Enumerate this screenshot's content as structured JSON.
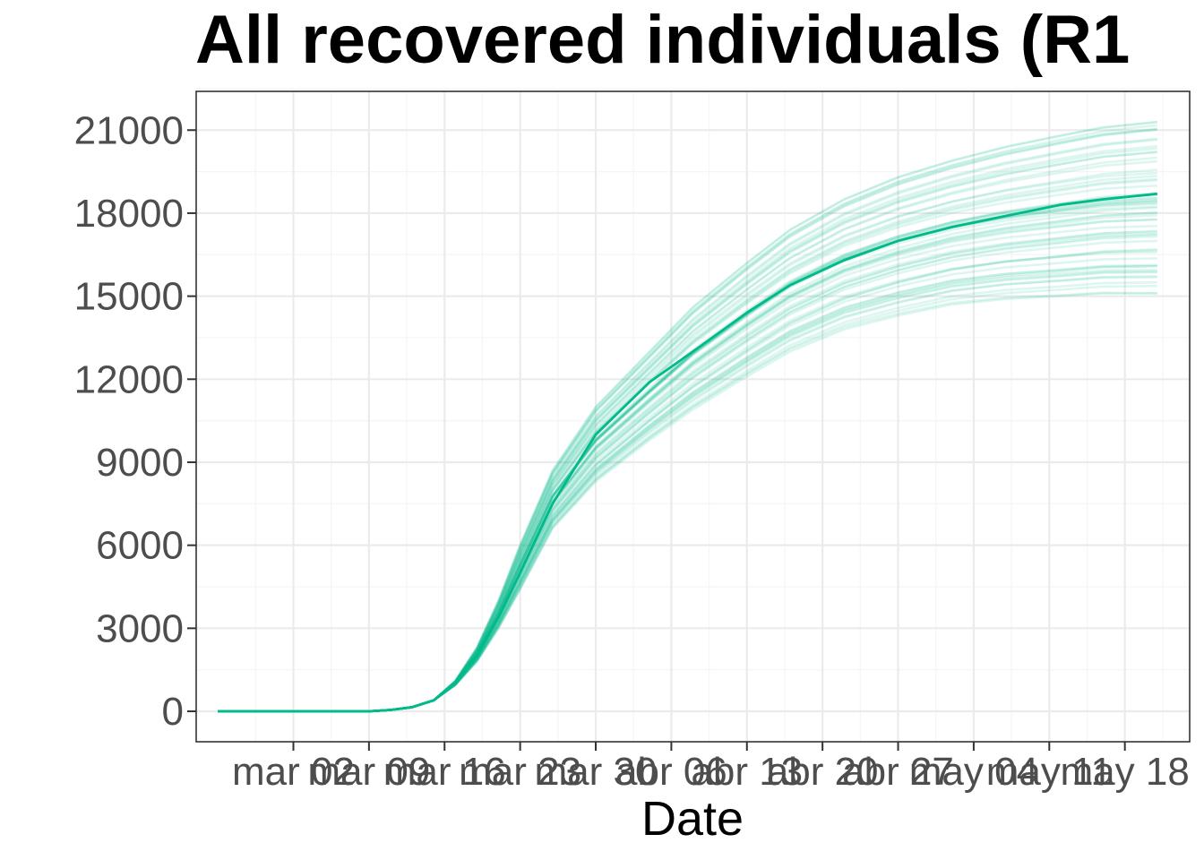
{
  "chart_data": {
    "type": "line",
    "title": "All recovered individuals (R1",
    "xlabel": "Date",
    "ylabel": "",
    "ylim": [
      -1100,
      22400
    ],
    "y_ticks": [
      0,
      3000,
      6000,
      9000,
      12000,
      15000,
      18000,
      21000
    ],
    "y_tick_labels": [
      "0",
      "3000",
      "6000",
      "9000",
      "12000",
      "15000",
      "18000",
      "21000"
    ],
    "x_tick_labels": [
      "mar 02",
      "mar 09",
      "mar 16",
      "mar 23",
      "mar 30",
      "abr 06",
      "abr 13",
      "abr 20",
      "abr 27",
      "may 04",
      "may 11",
      "may 18"
    ],
    "x_tick_dates": [
      "2020-03-02",
      "2020-03-09",
      "2020-03-16",
      "2020-03-23",
      "2020-03-30",
      "2020-04-06",
      "2020-04-13",
      "2020-04-20",
      "2020-04-27",
      "2020-05-04",
      "2020-05-11",
      "2020-05-18"
    ],
    "xlim": [
      "2020-02-22",
      "2020-05-24"
    ],
    "grid": true,
    "legend": "none",
    "colors": {
      "series": "#00BA8A",
      "panel_border": "#333333",
      "grid_major": "#ebebeb",
      "grid_minor": "#f5f5f5",
      "tick_label": "#4d4d4d"
    },
    "series": [
      {
        "role": "median",
        "x": [
          "2020-02-24",
          "2020-03-02",
          "2020-03-09",
          "2020-03-11",
          "2020-03-13",
          "2020-03-15",
          "2020-03-17",
          "2020-03-19",
          "2020-03-21",
          "2020-03-23",
          "2020-03-26",
          "2020-03-30",
          "2020-04-04",
          "2020-04-08",
          "2020-04-13",
          "2020-04-17",
          "2020-04-22",
          "2020-04-27",
          "2020-05-02",
          "2020-05-07",
          "2020-05-12",
          "2020-05-16",
          "2020-05-21"
        ],
        "values": [
          0,
          0,
          0,
          50,
          150,
          400,
          1000,
          2000,
          3400,
          5000,
          7500,
          10000,
          11900,
          13000,
          14400,
          15400,
          16300,
          17000,
          17500,
          17900,
          18300,
          18500,
          18700
        ]
      }
    ],
    "ensemble": {
      "count": 60,
      "x": [
        "2020-02-24",
        "2020-03-02",
        "2020-03-09",
        "2020-03-11",
        "2020-03-13",
        "2020-03-15",
        "2020-03-17",
        "2020-03-19",
        "2020-03-21",
        "2020-03-23",
        "2020-03-26",
        "2020-03-30",
        "2020-04-04",
        "2020-04-08",
        "2020-04-13",
        "2020-04-17",
        "2020-04-22",
        "2020-04-27",
        "2020-05-02",
        "2020-05-07",
        "2020-05-12",
        "2020-05-16",
        "2020-05-21"
      ],
      "low": [
        0,
        0,
        0,
        50,
        150,
        400,
        950,
        1800,
        3000,
        4400,
        6600,
        8300,
        9800,
        10900,
        12100,
        13000,
        13800,
        14300,
        14700,
        14900,
        15000,
        15100,
        15100
      ],
      "high": [
        0,
        0,
        0,
        50,
        150,
        400,
        1100,
        2300,
        4000,
        6000,
        8700,
        11000,
        13000,
        14600,
        16200,
        17400,
        18500,
        19300,
        19900,
        20400,
        20800,
        21100,
        21300
      ]
    }
  }
}
